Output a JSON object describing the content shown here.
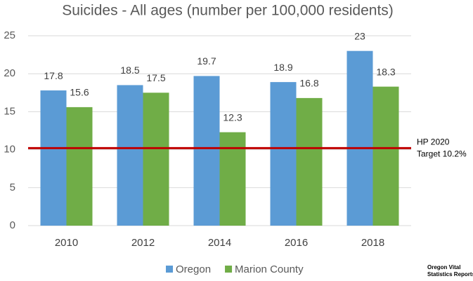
{
  "chart_data": {
    "type": "bar",
    "title": "Suicides - All ages (number per 100,000 residents)",
    "categories": [
      "2010",
      "2012",
      "2014",
      "2016",
      "2018"
    ],
    "series": [
      {
        "name": "Oregon",
        "color": "#5b9bd5",
        "values": [
          17.8,
          18.5,
          19.7,
          18.9,
          23
        ]
      },
      {
        "name": "Marion County",
        "color": "#70ad47",
        "values": [
          15.6,
          17.5,
          12.3,
          16.8,
          18.3
        ]
      }
    ],
    "ylim": [
      0,
      25
    ],
    "yticks": [
      0,
      5,
      10,
      15,
      20,
      25
    ],
    "grid": true,
    "target": {
      "value": 10.2,
      "color": "#c00000",
      "label": [
        "HP 2020",
        "Target 10.2%"
      ]
    },
    "source": [
      "Oregon Vital",
      "Statistics Reports"
    ],
    "legend": "bottom"
  }
}
